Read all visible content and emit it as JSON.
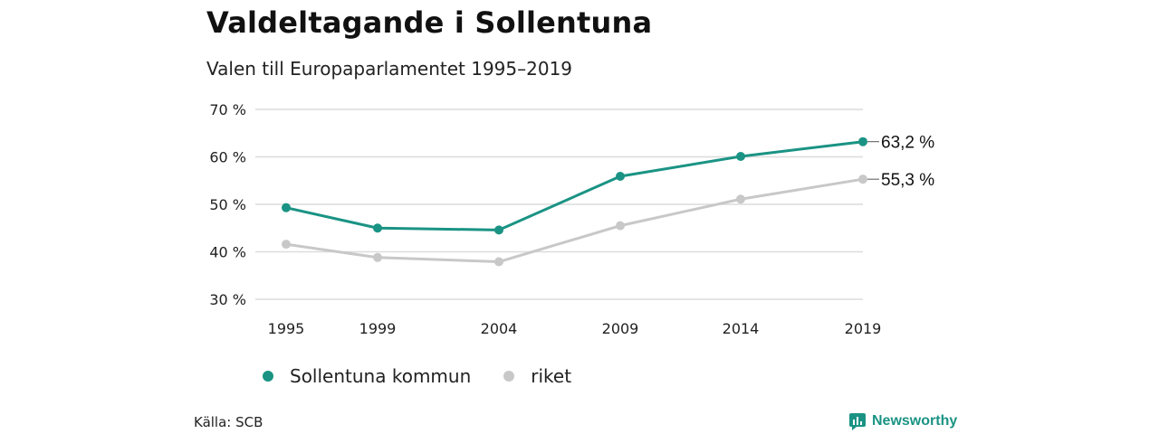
{
  "header": {
    "title": "Valdeltagande i Sollentuna",
    "subtitle": "Valen till Europaparlamentet 1995–2019"
  },
  "chart_data": {
    "type": "line",
    "categories": [
      "1995",
      "1999",
      "2004",
      "2009",
      "2014",
      "2019"
    ],
    "x": [
      1995,
      1999,
      2004,
      2009,
      2014,
      2019
    ],
    "series": [
      {
        "name": "Sollentuna kommun",
        "values": [
          49.3,
          45.0,
          44.6,
          55.9,
          60.1,
          63.2
        ],
        "color": "#1a9384",
        "end_label": "63,2 %"
      },
      {
        "name": "riket",
        "values": [
          41.6,
          38.8,
          37.9,
          45.5,
          51.1,
          55.3
        ],
        "color": "#c8c8c8",
        "end_label": "55,3 %"
      }
    ],
    "ylim": [
      30,
      70
    ],
    "yticks": [
      30,
      40,
      50,
      60,
      70
    ],
    "ytick_labels": [
      "30 %",
      "40 %",
      "50 %",
      "60 %",
      "70 %"
    ],
    "grid": true,
    "legend_placement": "bottom-left"
  },
  "footer": {
    "source": "Källa: SCB",
    "brand": "Newsworthy",
    "brand_color": "#1a9384"
  }
}
